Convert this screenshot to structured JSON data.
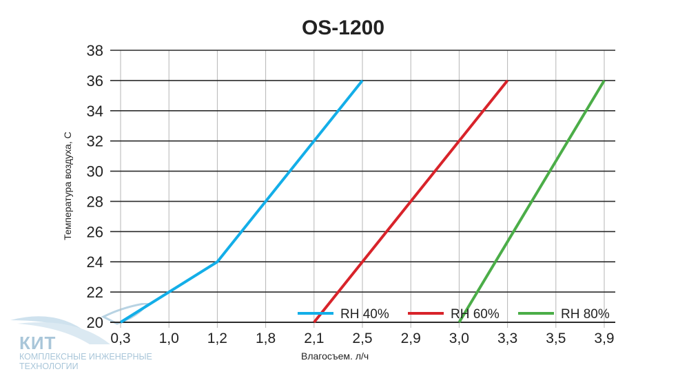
{
  "chart_data": {
    "type": "line",
    "title": "OS-1200",
    "xlabel": "Влагосъем. л/ч",
    "ylabel": "Температура воздуха, С",
    "x_tick_labels": [
      "0,3",
      "1,0",
      "1,2",
      "1,8",
      "2,1",
      "2,5",
      "2,9",
      "3,0",
      "3,3",
      "3,5",
      "3,9"
    ],
    "x_axis_scale": "categorical (evenly spaced labels)",
    "y_ticks": [
      20,
      22,
      24,
      26,
      28,
      30,
      32,
      34,
      36,
      38
    ],
    "ylim": [
      20,
      38
    ],
    "grid": true,
    "legend_placement": "bottom-right",
    "series": [
      {
        "name": "RH 40%",
        "color": "#13aee8",
        "points": [
          [
            0.3,
            20
          ],
          [
            1.2,
            24
          ],
          [
            2.5,
            36
          ]
        ]
      },
      {
        "name": "RH 60%",
        "color": "#d8232a",
        "points": [
          [
            2.1,
            20
          ],
          [
            3.3,
            36
          ]
        ]
      },
      {
        "name": "RH 80%",
        "color": "#4bad48",
        "points": [
          [
            3.0,
            20
          ],
          [
            3.9,
            36
          ]
        ]
      }
    ]
  },
  "logo": {
    "name": "КИТ",
    "subtitle_1": "КОМПЛЕКСНЫЕ ИНЖЕНЕРНЫЕ",
    "subtitle_2": "ТЕХНОЛОГИИ"
  }
}
